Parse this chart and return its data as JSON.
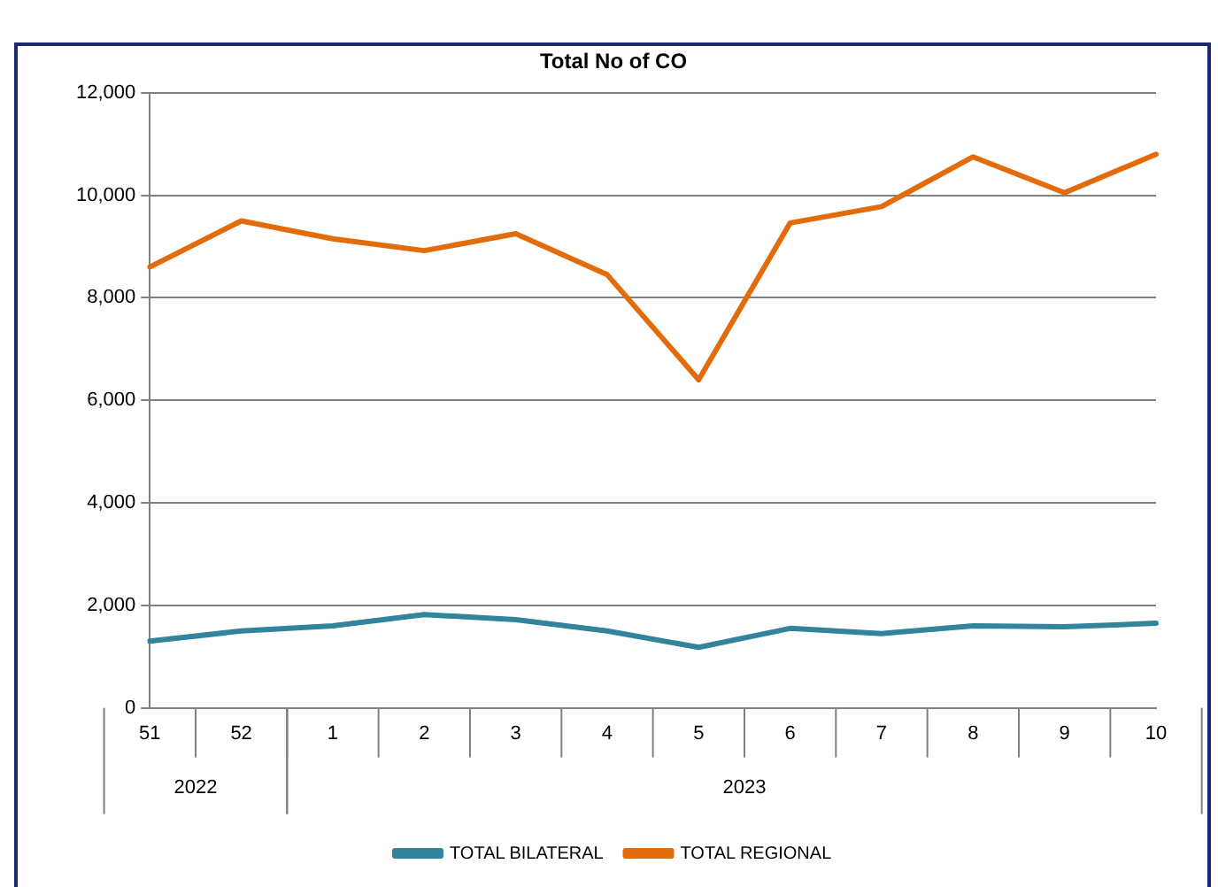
{
  "chart_data": {
    "type": "line",
    "title": "Total No of CO",
    "categories": [
      "51",
      "52",
      "1",
      "2",
      "3",
      "4",
      "5",
      "6",
      "7",
      "8",
      "9",
      "10"
    ],
    "series": [
      {
        "name": "TOTAL BILATERAL",
        "color": "#31849b",
        "values": [
          1300,
          1500,
          1600,
          1820,
          1720,
          1500,
          1180,
          1550,
          1450,
          1600,
          1580,
          1650
        ]
      },
      {
        "name": "TOTAL REGIONAL",
        "color": "#e36c0a",
        "values": [
          8600,
          9500,
          9150,
          8920,
          9250,
          8450,
          6400,
          9460,
          9780,
          10750,
          10050,
          10800
        ]
      }
    ],
    "ylim": [
      0,
      12000
    ],
    "yticks": [
      0,
      {
        "value": 2000,
        "label": "2,000"
      },
      {
        "value": 4000,
        "label": "4,000"
      },
      {
        "value": 6000,
        "label": "6,000"
      },
      {
        "value": 8000,
        "label": "8,000"
      },
      {
        "value": 10000,
        "label": "10,000"
      },
      {
        "value": 12000,
        "label": "12,000"
      }
    ],
    "grid": "y",
    "legend": "bottom",
    "marker": "none",
    "line_style": "solid",
    "annotations": [
      "2022",
      "2023"
    ]
  }
}
